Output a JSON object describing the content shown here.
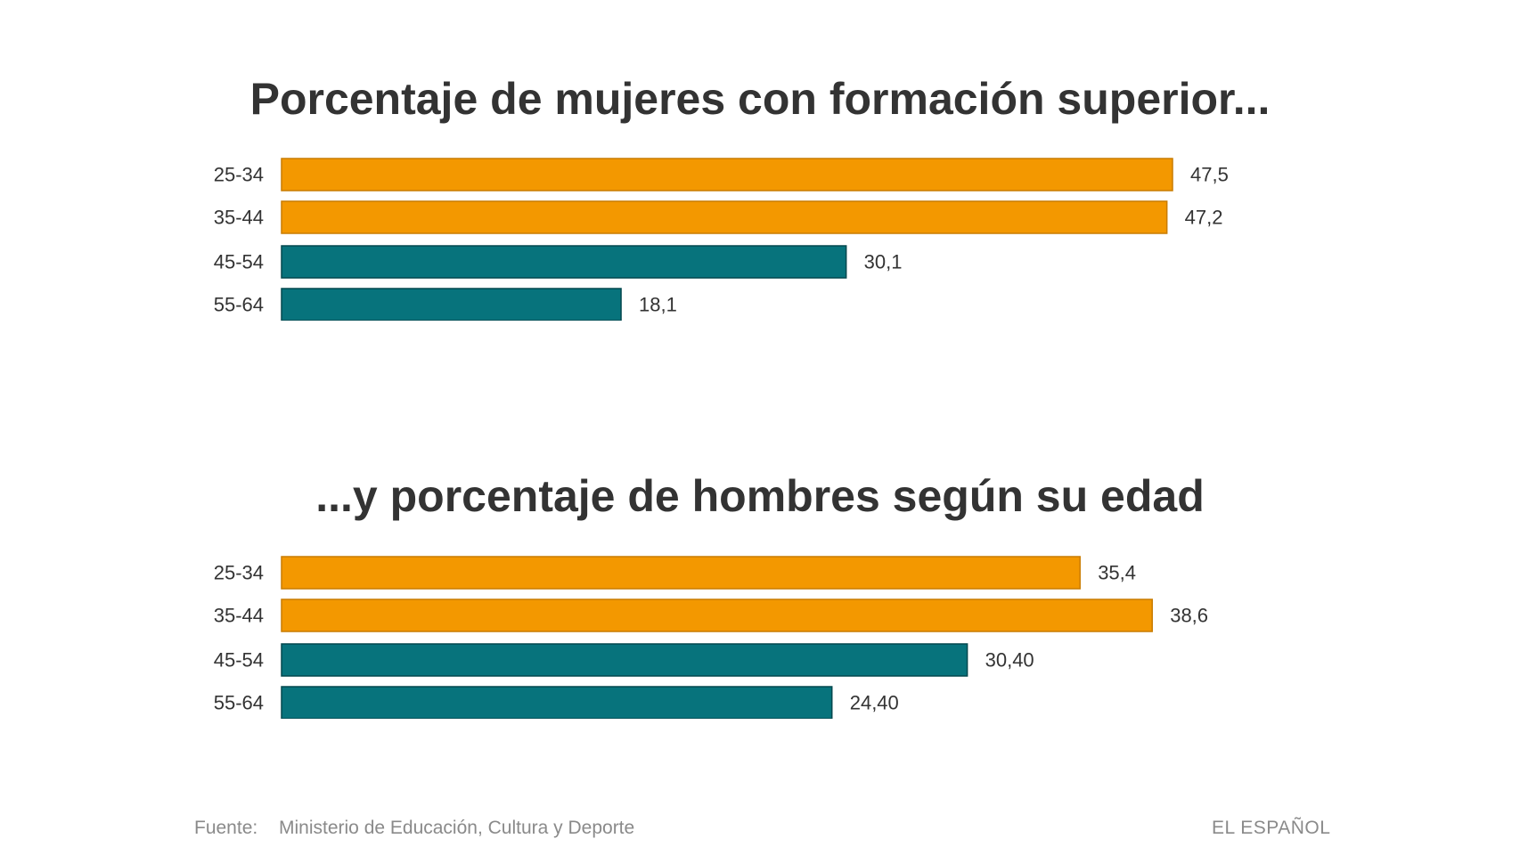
{
  "chart_data": [
    {
      "type": "bar",
      "orientation": "horizontal",
      "title": "Porcentaje de mujeres con formación superior...",
      "categories": [
        "25-34",
        "35-44",
        "45-54",
        "55-64"
      ],
      "values": [
        47.5,
        47.2,
        30.1,
        18.1
      ],
      "value_labels": [
        "47,5",
        "47,2",
        "30,1",
        "18,1"
      ],
      "bar_colors": [
        "#F39800",
        "#F39800",
        "#07737C",
        "#07737C"
      ],
      "xlim": [
        0,
        47.5
      ],
      "grid": false
    },
    {
      "type": "bar",
      "orientation": "horizontal",
      "title": "...y porcentaje de hombres según su edad",
      "categories": [
        "25-34",
        "35-44",
        "45-54",
        "55-64"
      ],
      "values": [
        35.4,
        38.6,
        30.4,
        24.4
      ],
      "value_labels": [
        "35,4",
        "38,6",
        "30,40",
        "24,40"
      ],
      "bar_colors": [
        "#F39800",
        "#F39800",
        "#07737C",
        "#07737C"
      ],
      "xlim": [
        0,
        39.5
      ],
      "grid": false
    }
  ],
  "footer": {
    "source_label": "Fuente:",
    "source_text": "Ministerio de Educación, Cultura y Deporte",
    "brand": "EL ESPAÑOL"
  },
  "colors": {
    "orange": "#F39800",
    "orange_border": "#C97C00",
    "teal": "#07737C",
    "teal_border": "#04484E"
  }
}
